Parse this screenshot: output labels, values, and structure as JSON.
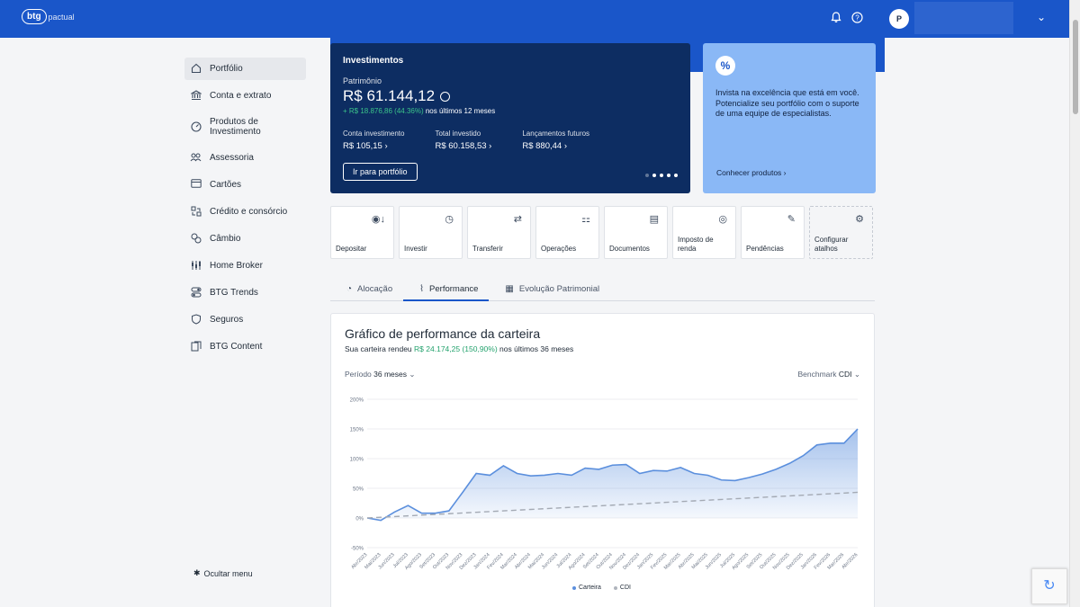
{
  "header": {
    "logo": "btg",
    "logo_sub": "pactual",
    "avatar_initial": "P"
  },
  "sidebar": {
    "items": [
      {
        "label": "Portfólio",
        "icon": "home-icon"
      },
      {
        "label": "Conta e extrato",
        "icon": "bank-icon"
      },
      {
        "label": "Produtos de Investimento",
        "icon": "gauge-icon"
      },
      {
        "label": "Assessoria",
        "icon": "people-icon"
      },
      {
        "label": "Cartões",
        "icon": "card-icon"
      },
      {
        "label": "Crédito e consórcio",
        "icon": "credit-icon"
      },
      {
        "label": "Câmbio",
        "icon": "exchange-icon"
      },
      {
        "label": "Home Broker",
        "icon": "candles-icon"
      },
      {
        "label": "BTG Trends",
        "icon": "toggles-icon"
      },
      {
        "label": "Seguros",
        "icon": "shield-icon"
      },
      {
        "label": "BTG Content",
        "icon": "content-icon"
      }
    ],
    "hide_label": "Ocultar menu"
  },
  "invest_card": {
    "title": "Investimentos",
    "patrimonio_label": "Patrimônio",
    "patrimonio_value": "R$ 61.144,12",
    "gain_value": "+ R$ 18.876,86 (44.36%)",
    "gain_period": "nos últimos 12 meses",
    "stats": [
      {
        "label": "Conta investimento",
        "value": "R$ 105,15 ›"
      },
      {
        "label": "Total investido",
        "value": "R$ 60.158,53 ›"
      },
      {
        "label": "Lançamentos futuros",
        "value": "R$ 880,44 ›"
      }
    ],
    "button_label": "Ir para portfólio"
  },
  "promo_card": {
    "icon_text": "%",
    "text": "Invista na excelência que está em você. Potencialize seu portfólio com o suporte de uma equipe de especialistas.",
    "link": "Conhecer produtos ›"
  },
  "shortcuts": [
    {
      "label": "Depositar",
      "icon": "deposit-icon"
    },
    {
      "label": "Investir",
      "icon": "invest-icon"
    },
    {
      "label": "Transferir",
      "icon": "transfer-icon"
    },
    {
      "label": "Operações",
      "icon": "operations-icon"
    },
    {
      "label": "Documentos",
      "icon": "document-icon"
    },
    {
      "label": "Imposto de renda",
      "icon": "tax-icon"
    },
    {
      "label": "Pendências",
      "icon": "pending-icon"
    },
    {
      "label": "Configurar atalhos",
      "icon": "gear-icon"
    }
  ],
  "tabs": [
    {
      "label": "Alocação",
      "icon": "pie-icon"
    },
    {
      "label": "Performance",
      "icon": "trend-icon"
    },
    {
      "label": "Evolução Patrimonial",
      "icon": "evolution-icon"
    }
  ],
  "performance": {
    "title": "Gráfico de performance da carteira",
    "sub_prefix": "Sua carteira rendeu",
    "sub_value": "R$ 24.174,25 (150,90%)",
    "sub_suffix": "nos últimos 36 meses",
    "period_label": "Período",
    "period_value": "36 meses",
    "benchmark_label": "Benchmark",
    "benchmark_value": "CDI"
  },
  "chart_data": {
    "type": "area",
    "x": [
      "Abr/2023",
      "Mai/2023",
      "Jun/2023",
      "Jul/2023",
      "Ago/2023",
      "Set/2023",
      "Out/2023",
      "Nov/2023",
      "Dez/2023",
      "Jan/2024",
      "Fev/2024",
      "Mar/2024",
      "Abr/2024",
      "Mai/2024",
      "Jun/2024",
      "Jul/2024",
      "Ago/2024",
      "Set/2024",
      "Out/2024",
      "Nov/2024",
      "Dez/2024",
      "Jan/2025",
      "Fev/2025",
      "Mar/2025",
      "Abr/2025",
      "Mai/2025",
      "Jun/2025",
      "Jul/2025",
      "Ago/2025",
      "Set/2025",
      "Out/2025",
      "Nov/2025",
      "Dez/2025",
      "Jan/2026",
      "Fev/2026",
      "Mar/2026",
      "Abr/2026"
    ],
    "series": [
      {
        "name": "Carteira",
        "color": "#5b8fdd",
        "values": [
          0,
          -4,
          10,
          21,
          8,
          8,
          12,
          43,
          75,
          72,
          88,
          75,
          71,
          72,
          75,
          72,
          84,
          82,
          89,
          90,
          75,
          80,
          79,
          85,
          75,
          72,
          64,
          63,
          68,
          74,
          82,
          92,
          105,
          123,
          126,
          126,
          150
        ]
      },
      {
        "name": "CDI",
        "color": "#b0b5bd",
        "values": [
          0,
          1.2,
          2.4,
          3.6,
          4.8,
          6,
          7.2,
          8.4,
          9.6,
          10.8,
          12,
          13.2,
          14.4,
          15.6,
          16.8,
          18,
          19.2,
          20.4,
          21.6,
          22.8,
          24,
          25.2,
          26.4,
          27.6,
          28.8,
          30,
          31.2,
          32.4,
          33.6,
          34.8,
          36,
          37.2,
          38.4,
          39.6,
          40.8,
          42,
          43.2
        ]
      }
    ],
    "yticks": [
      "200%",
      "150%",
      "100%",
      "50%",
      "0%",
      "-50%"
    ],
    "ylim": [
      -50,
      200
    ],
    "legend": "bottom-center",
    "grid": true
  }
}
